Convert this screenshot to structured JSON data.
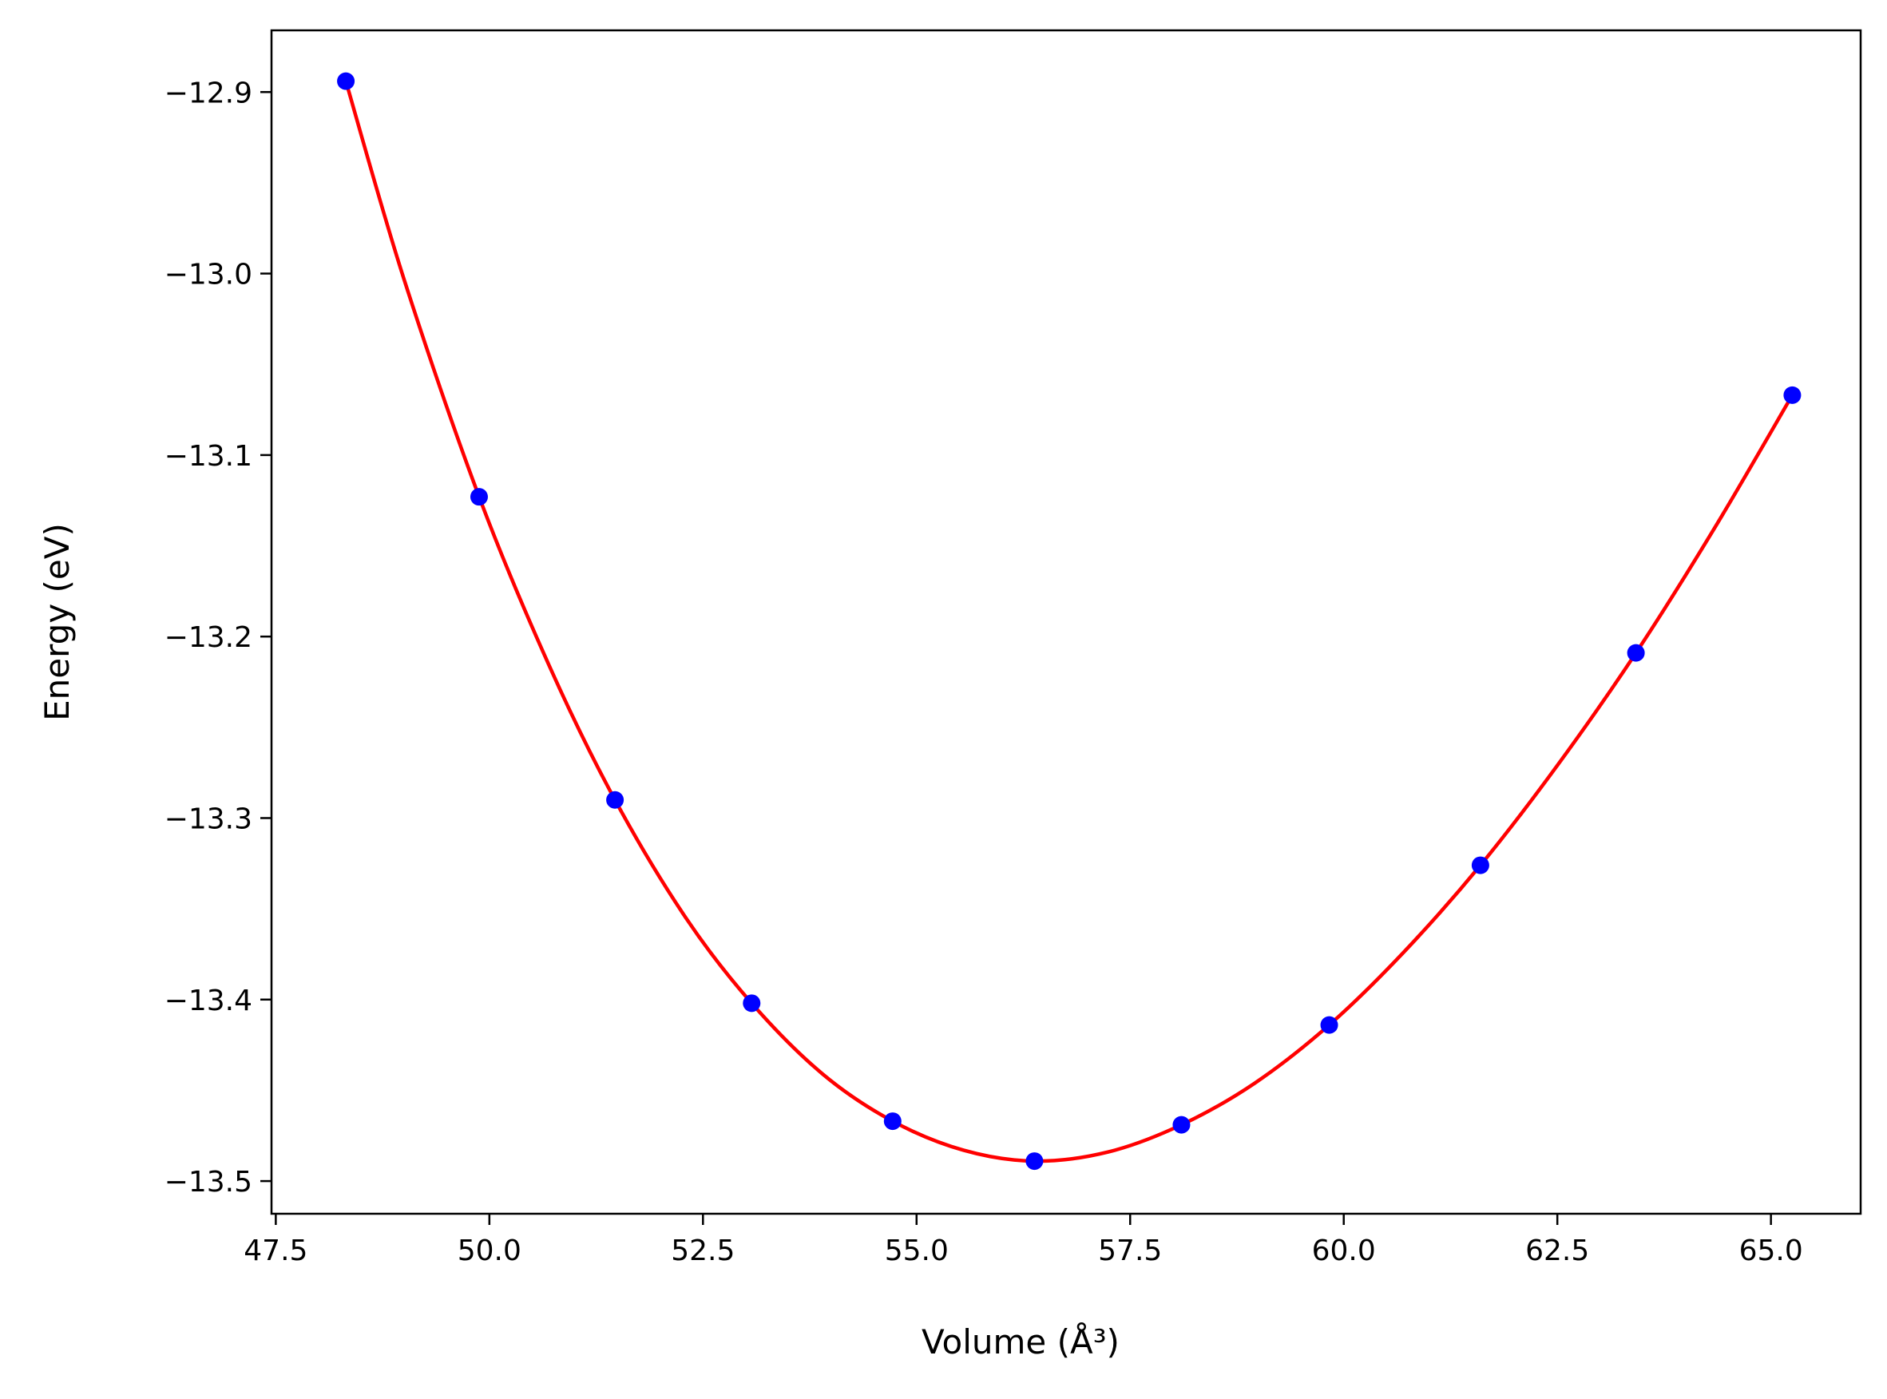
{
  "chart_data": {
    "type": "scatter",
    "title": "",
    "xlabel": "Volume (Å³)",
    "ylabel": "Energy (eV)",
    "xlim": [
      47.45,
      66.05
    ],
    "ylim": [
      -13.518,
      -12.866
    ],
    "xticks": [
      47.5,
      50.0,
      52.5,
      55.0,
      57.5,
      60.0,
      62.5,
      65.0
    ],
    "xtick_labels": [
      "47.5",
      "50.0",
      "52.5",
      "55.0",
      "57.5",
      "60.0",
      "62.5",
      "65.0"
    ],
    "yticks": [
      -12.9,
      -13.0,
      -13.1,
      -13.2,
      -13.3,
      -13.4,
      -13.5
    ],
    "ytick_labels": [
      "−12.9",
      "−13.0",
      "−13.1",
      "−13.2",
      "−13.3",
      "−13.4",
      "−13.5"
    ],
    "grid": false,
    "series": [
      {
        "kind": "points",
        "color": "#0000ff",
        "x": [
          48.32,
          49.88,
          51.47,
          53.07,
          54.72,
          56.38,
          58.1,
          59.83,
          61.6,
          63.42,
          65.25
        ],
        "y": [
          -12.894,
          -13.123,
          -13.29,
          -13.402,
          -13.467,
          -13.489,
          -13.469,
          -13.414,
          -13.326,
          -13.209,
          -13.067
        ]
      },
      {
        "kind": "fit-curve",
        "color": "#ff0000",
        "x": [
          48.32,
          49.0,
          49.88,
          50.7,
          51.47,
          52.3,
          53.07,
          53.9,
          54.72,
          55.55,
          56.38,
          57.24,
          58.1,
          58.96,
          59.83,
          60.7,
          61.6,
          62.5,
          63.42,
          64.33,
          65.25
        ],
        "y": [
          -12.894,
          -13.003,
          -13.123,
          -13.216,
          -13.29,
          -13.355,
          -13.402,
          -13.441,
          -13.467,
          -13.483,
          -13.489,
          -13.484,
          -13.469,
          -13.446,
          -13.414,
          -13.374,
          -13.326,
          -13.271,
          -13.209,
          -13.141,
          -13.067
        ]
      }
    ]
  }
}
